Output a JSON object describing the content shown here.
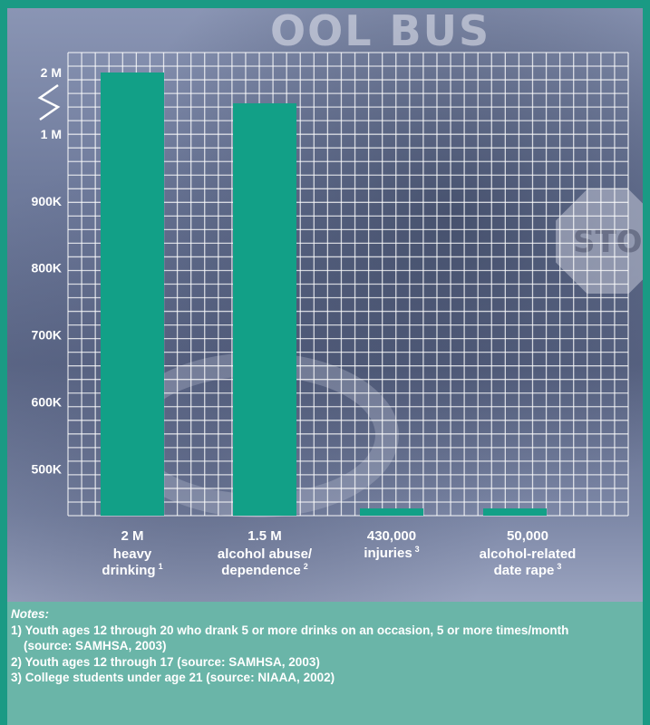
{
  "chart_data": {
    "type": "bar",
    "categories": [
      "heavy drinking",
      "alcohol abuse/ dependence",
      "injuries",
      "alcohol-related date rape"
    ],
    "values": [
      2000000,
      1500000,
      430000,
      50000
    ],
    "value_labels": [
      "2 M",
      "1.5 M",
      "430,000",
      "50,000"
    ],
    "footnote_marks": [
      "1",
      "2",
      "3",
      "3"
    ],
    "y_tick_labels": [
      "2 M",
      "1 M",
      "900K",
      "800K",
      "700K",
      "600K",
      "500K"
    ],
    "y_axis_broken": true,
    "grid": true,
    "bar_color": "#12a087"
  },
  "photo": {
    "bus_text": "OOL BUS",
    "stop_text": "STOP"
  },
  "notes": {
    "title": "Notes:",
    "items": [
      "1) Youth ages 12 through 20 who drank 5 or more drinks on an occasion, 5 or more times/month",
      "(source: SAMHSA, 2003)",
      "2) Youth ages 12 through 17 (source: SAMHSA, 2003)",
      "3) College students under age 21 (source: NIAAA, 2002)"
    ]
  }
}
